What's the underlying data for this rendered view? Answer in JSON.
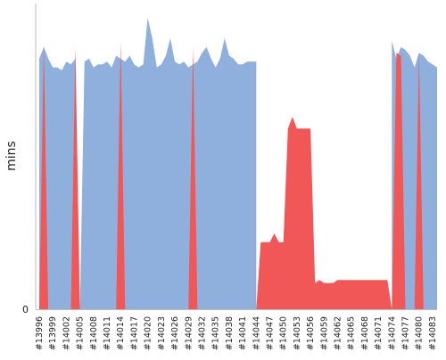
{
  "chart_data": {
    "type": "area",
    "ylabel": "mins",
    "y_tick_labels": [
      "0"
    ],
    "ylim": [
      0,
      100
    ],
    "grid": false,
    "legend": "none",
    "colors": {
      "pass": "#8fb0dc",
      "fail": "#f25757",
      "axis": "#bbbbbb"
    },
    "x_tick_labels": [
      "#13996",
      "#13999",
      "#14002",
      "#14005",
      "#14008",
      "#14011",
      "#14014",
      "#14017",
      "#14020",
      "#14023",
      "#14026",
      "#14029",
      "#14032",
      "#14035",
      "#14038",
      "#14041",
      "#14044",
      "#14047",
      "#14050",
      "#14053",
      "#14056",
      "#14059",
      "#14062",
      "#14065",
      "#14068",
      "#14071",
      "#14074",
      "#14077",
      "#14080",
      "#14083"
    ],
    "series": [
      {
        "status": "pass",
        "x": [
          13996,
          13997,
          13998,
          13999,
          14000,
          14001,
          14002,
          14003,
          14004,
          14005,
          14006,
          14007,
          14008,
          14009,
          14010,
          14011,
          14012,
          14013,
          14014,
          14015,
          14016,
          14017,
          14018,
          14019,
          14020,
          14021,
          14022,
          14023,
          14024,
          14025,
          14026,
          14027,
          14028,
          14029,
          14030,
          14031,
          14032,
          14033,
          14034,
          14035,
          14036,
          14037,
          14038,
          14039,
          14040,
          14041,
          14042,
          14043,
          14044,
          14074,
          14075,
          14076,
          14077,
          14078,
          14079,
          14080,
          14081,
          14082,
          14083,
          14084
        ],
        "values": [
          86,
          90,
          86,
          83,
          83,
          82,
          85,
          84,
          86,
          0,
          85,
          86,
          83,
          84,
          84,
          85,
          83,
          87,
          86,
          85,
          87,
          84,
          83,
          84,
          100,
          93,
          83,
          84,
          87,
          93,
          85,
          84,
          85,
          83,
          84,
          85,
          88,
          90,
          86,
          83,
          86,
          93,
          87,
          86,
          84,
          84,
          85,
          85,
          85,
          92,
          86,
          90,
          89,
          87,
          83,
          88,
          87,
          85,
          84,
          83
        ]
      },
      {
        "status": "fail",
        "x": [
          13996,
          13997,
          13998,
          14003,
          14004,
          14005,
          14006,
          14007,
          14013,
          14014,
          14015,
          14029,
          14030,
          14031,
          14044,
          14045,
          14046,
          14047,
          14048,
          14049,
          14050,
          14051,
          14052,
          14053,
          14054,
          14055,
          14056,
          14057,
          14058,
          14059,
          14060,
          14061,
          14062,
          14063,
          14064,
          14065,
          14066,
          14067,
          14068,
          14069,
          14070,
          14071,
          14072,
          14073,
          14074,
          14075,
          14076,
          14077,
          14078,
          14079,
          14080,
          14081,
          14082
        ],
        "values": [
          0,
          90,
          0,
          0,
          90,
          0,
          0,
          0,
          0,
          92,
          0,
          0,
          90,
          0,
          0,
          23,
          23,
          23,
          26,
          23,
          23,
          62,
          66,
          62,
          62,
          62,
          62,
          9,
          10,
          9,
          9,
          9,
          10,
          10,
          10,
          10,
          10,
          10,
          10,
          10,
          10,
          10,
          10,
          10,
          0,
          88,
          87,
          0,
          0,
          0,
          88,
          0,
          0
        ]
      }
    ]
  }
}
